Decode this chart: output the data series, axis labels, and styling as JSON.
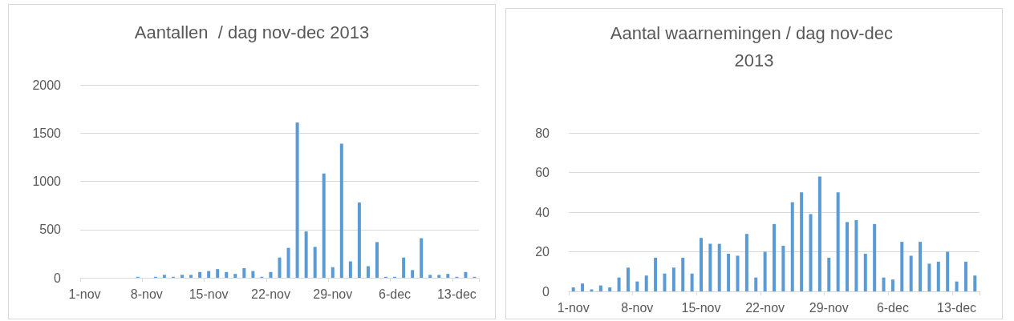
{
  "chart_data": [
    {
      "type": "bar",
      "title": "Aantallen  / dag nov-dec 2013",
      "categories": [
        "1-nov",
        null,
        null,
        null,
        null,
        null,
        null,
        "8-nov",
        null,
        null,
        null,
        null,
        null,
        null,
        "15-nov",
        null,
        null,
        null,
        null,
        null,
        null,
        "22-nov",
        null,
        null,
        null,
        null,
        null,
        null,
        "29-nov",
        null,
        null,
        null,
        null,
        null,
        null,
        "6-dec",
        null,
        null,
        null,
        null,
        null,
        null,
        "13-dec",
        null,
        null
      ],
      "values": [
        0,
        0,
        0,
        0,
        0,
        0,
        10,
        0,
        10,
        30,
        10,
        30,
        30,
        60,
        70,
        90,
        60,
        40,
        100,
        70,
        10,
        60,
        210,
        310,
        1610,
        480,
        320,
        1080,
        110,
        1390,
        170,
        780,
        120,
        370,
        10,
        10,
        210,
        80,
        410,
        30,
        30,
        40,
        10,
        60,
        10
      ],
      "color": "#5b9bd5",
      "ylim": [
        0,
        2000
      ],
      "yticks": [
        0,
        500,
        1000,
        1500,
        2000
      ],
      "grid": "y"
    },
    {
      "type": "bar",
      "title": "Aantal waarnemingen / dag nov-dec 2013",
      "categories": [
        "1-nov",
        null,
        null,
        null,
        null,
        null,
        null,
        "8-nov",
        null,
        null,
        null,
        null,
        null,
        null,
        "15-nov",
        null,
        null,
        null,
        null,
        null,
        null,
        "22-nov",
        null,
        null,
        null,
        null,
        null,
        null,
        "29-nov",
        null,
        null,
        null,
        null,
        null,
        null,
        "6-dec",
        null,
        null,
        null,
        null,
        null,
        null,
        "13-dec",
        null,
        null
      ],
      "values": [
        2,
        4,
        1,
        3,
        2,
        7,
        12,
        5,
        8,
        17,
        9,
        12,
        17,
        9,
        27,
        24,
        24,
        19,
        18,
        29,
        7,
        20,
        34,
        23,
        45,
        50,
        39,
        58,
        17,
        50,
        35,
        36,
        19,
        34,
        7,
        6,
        25,
        18,
        25,
        14,
        15,
        20,
        5,
        15,
        8
      ],
      "color": "#5b9bd5",
      "ylim": [
        0,
        80
      ],
      "yticks": [
        0,
        20,
        40,
        60,
        80
      ],
      "grid": "y"
    }
  ]
}
